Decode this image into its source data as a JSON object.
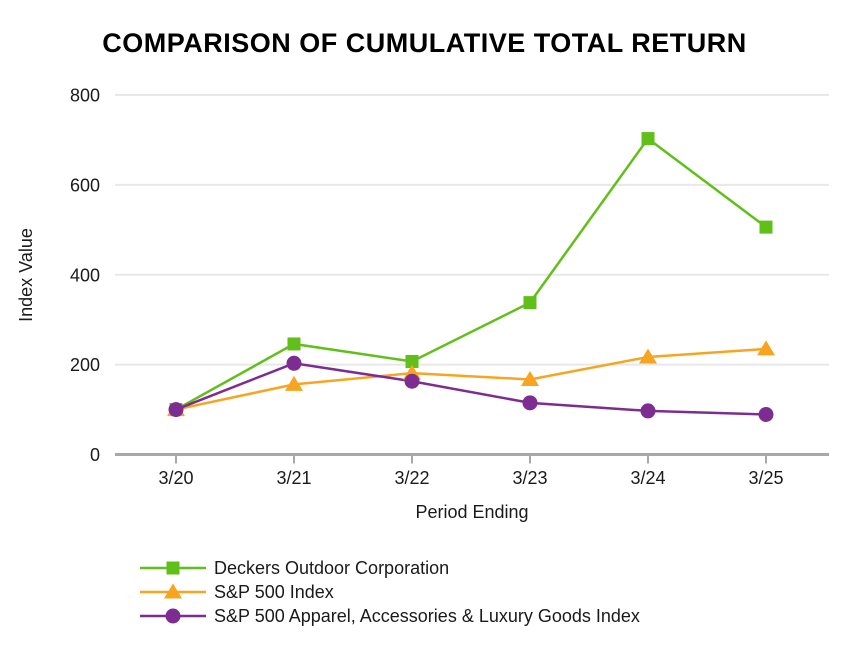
{
  "chart_data": {
    "type": "line",
    "title": "COMPARISON OF CUMULATIVE TOTAL RETURN",
    "xlabel": "Period Ending",
    "ylabel": "Index Value",
    "categories": [
      "3/20",
      "3/21",
      "3/22",
      "3/23",
      "3/24",
      "3/25"
    ],
    "y_ticks": [
      0,
      200,
      400,
      600,
      800
    ],
    "ylim": [
      0,
      800
    ],
    "grid": "horizontal-only",
    "legend_position": "bottom-left",
    "series": [
      {
        "name": "Deckers Outdoor Corporation",
        "marker": "square",
        "color": "#61bf1a",
        "values": [
          100,
          246,
          207,
          338,
          703,
          506
        ]
      },
      {
        "name": "S&P 500 Index",
        "marker": "triangle",
        "color": "#f7a521",
        "values": [
          100,
          156,
          181,
          167,
          217,
          235
        ]
      },
      {
        "name": "S&P 500 Apparel, Accessories & Luxury Goods Index",
        "marker": "circle",
        "color": "#7d2d91",
        "values": [
          100,
          203,
          163,
          115,
          97,
          89
        ]
      }
    ],
    "colors": {
      "axis": "#a8a8a8",
      "gridline": "#e8e8e8",
      "text": "#1a1a1a",
      "title": "#000000"
    }
  }
}
